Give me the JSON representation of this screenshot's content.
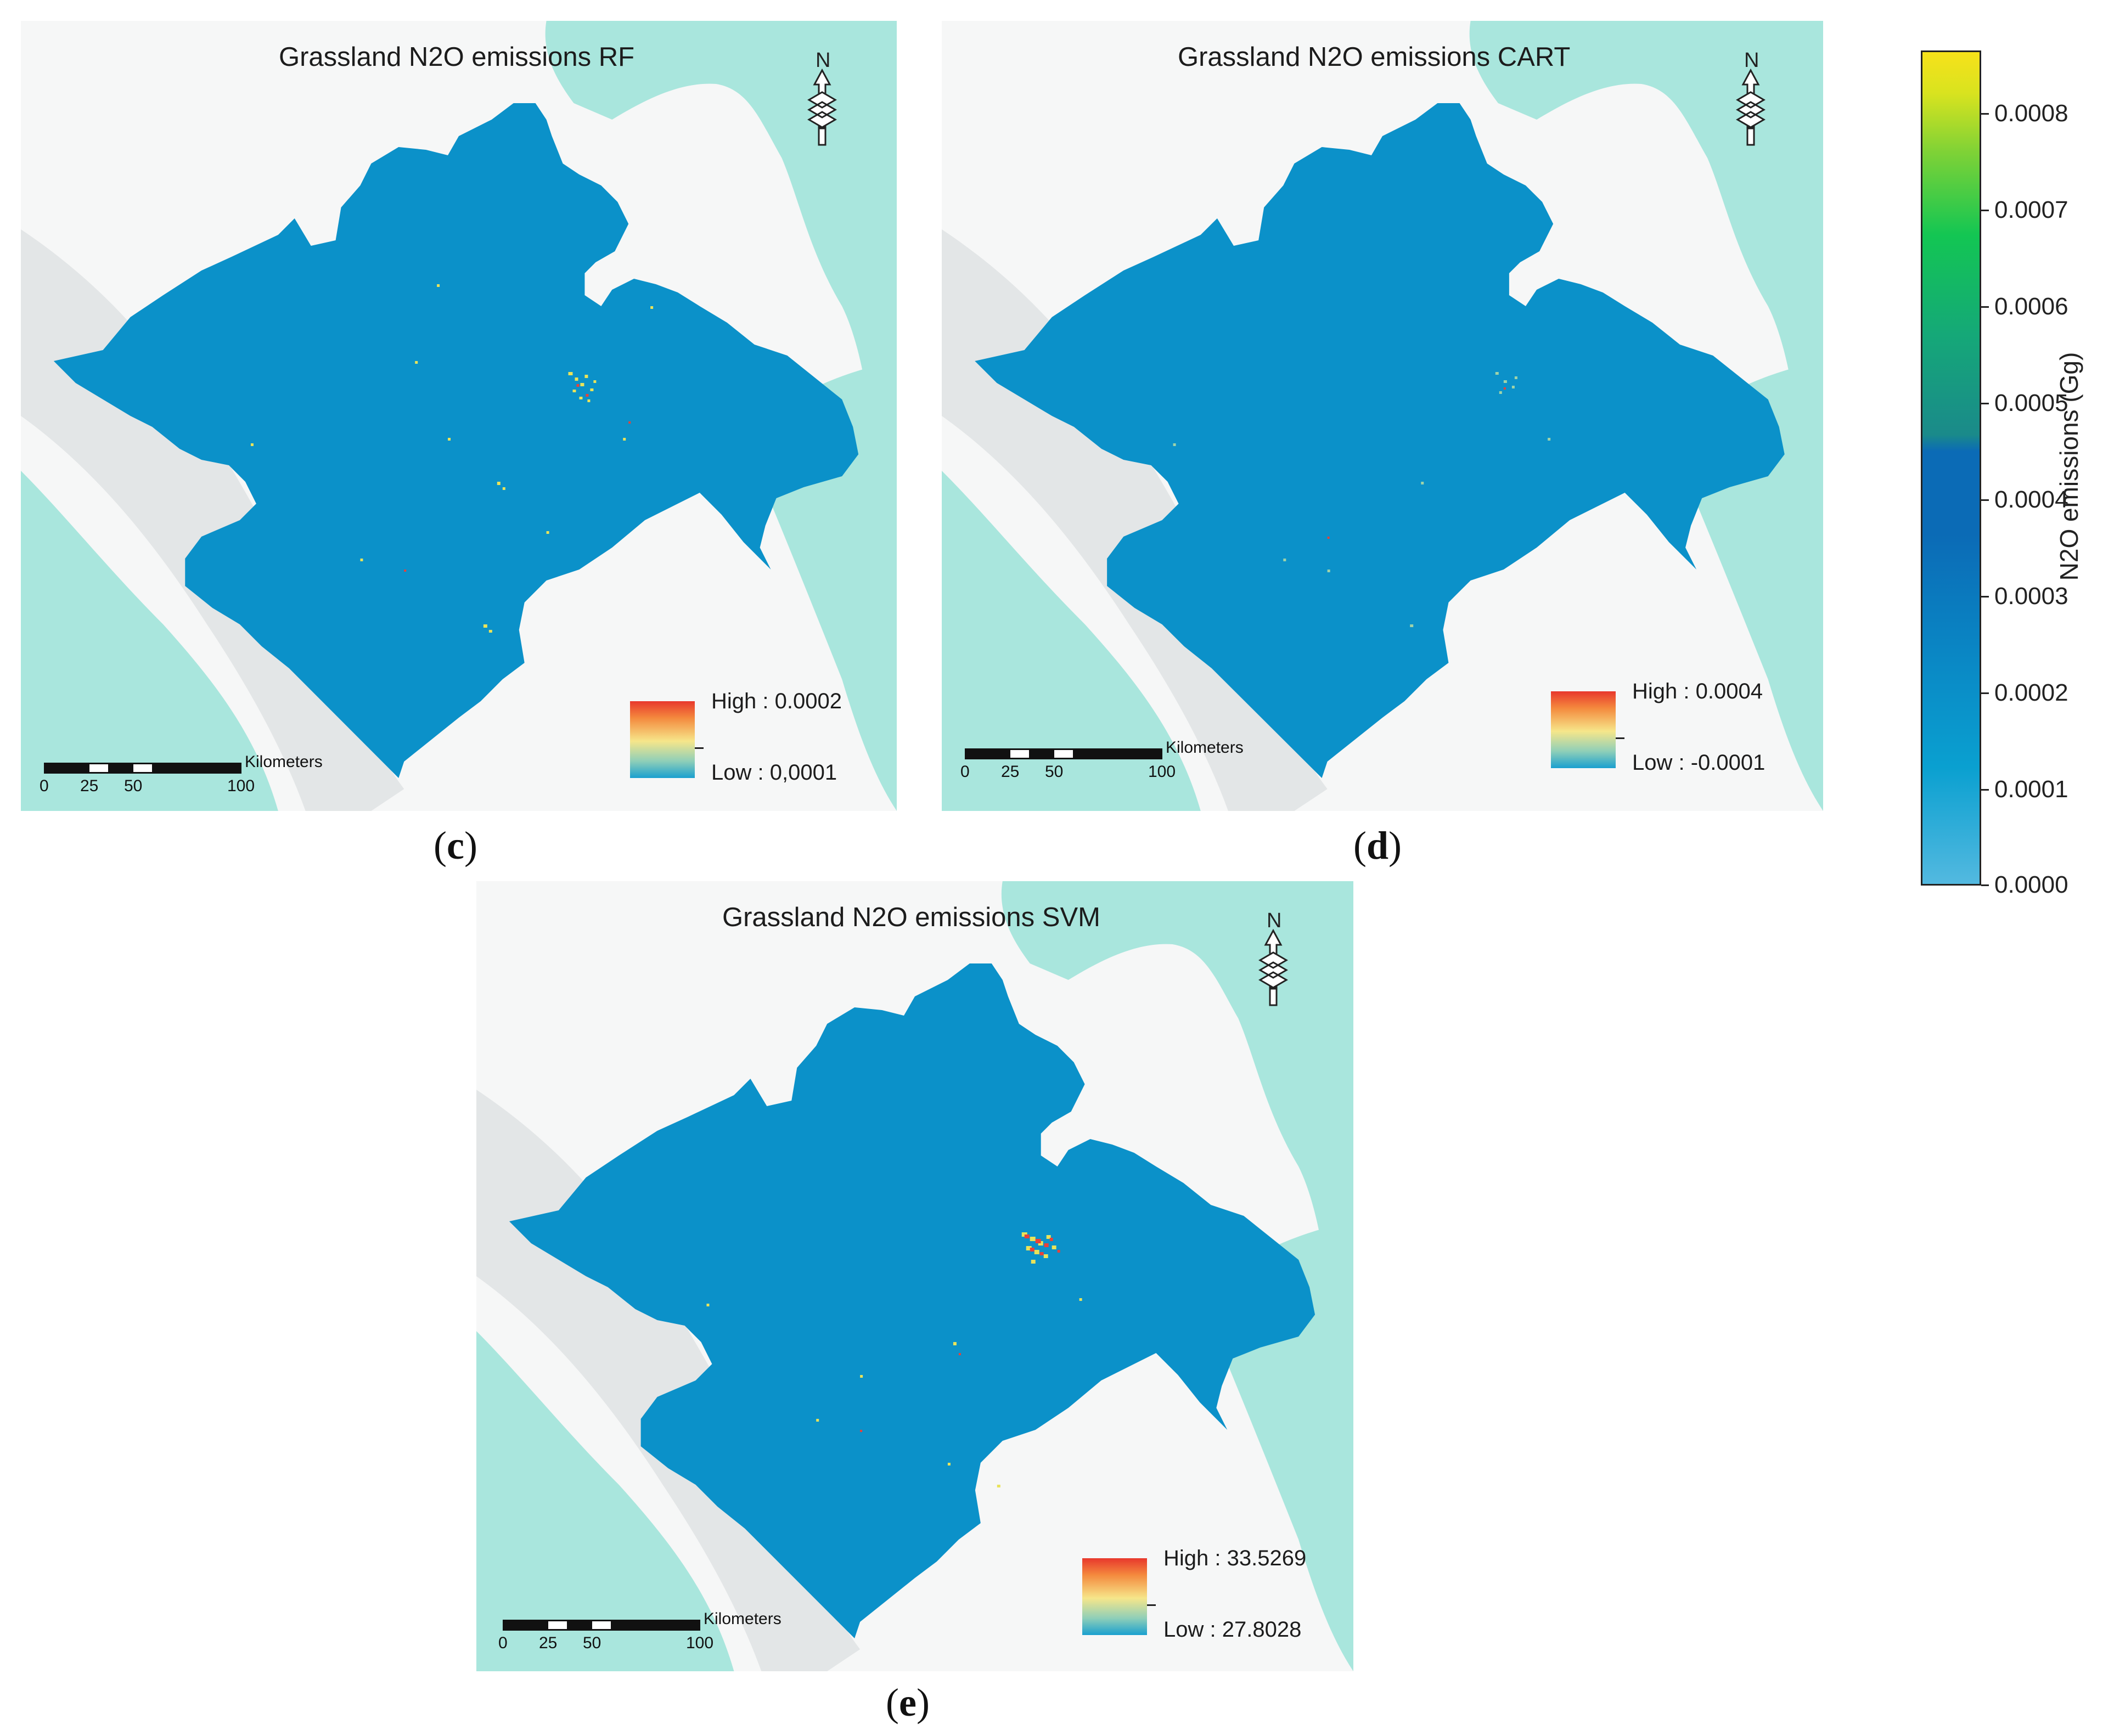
{
  "colors": {
    "sea": "#a9e6dd",
    "land": "#f6f7f7",
    "region": "#0b91c9",
    "hotspot_yellow": "#e9e35a",
    "hotspot_red": "#e8413a"
  },
  "panels": [
    {
      "id": "c",
      "title": "Grassland N2O emissions RF",
      "legend_high": "High : 0.0002",
      "legend_low": "Low : 0,0001",
      "panel_label_open": "(",
      "panel_label_letter": "c",
      "panel_label_close": ")",
      "scale_unit": "Kilometers",
      "scale_ticks": [
        "0",
        "25",
        "50",
        "100"
      ],
      "north_label": "N"
    },
    {
      "id": "d",
      "title": "Grassland N2O emissions CART",
      "legend_high": "High : 0.0004",
      "legend_low": "Low : -0.0001",
      "panel_label_open": "(",
      "panel_label_letter": "d",
      "panel_label_close": ")",
      "scale_unit": "Kilometers",
      "scale_ticks": [
        "0",
        "25",
        "50",
        "100"
      ],
      "north_label": "N"
    },
    {
      "id": "e",
      "title": "Grassland N2O emissions SVM",
      "legend_high": "High : 33.5269",
      "legend_low": "Low : 27.8028",
      "panel_label_open": "(",
      "panel_label_letter": "e",
      "panel_label_close": ")",
      "scale_unit": "Kilometers",
      "scale_ticks": [
        "0",
        "25",
        "50",
        "100"
      ],
      "north_label": "N"
    }
  ],
  "colorbar": {
    "title": "N2O emissions (Gg)",
    "ticks": [
      "0.0008",
      "0.0007",
      "0.0006",
      "0.0005",
      "0.0004",
      "0.0003",
      "0.0002",
      "0.0001",
      "0.0000"
    ]
  }
}
